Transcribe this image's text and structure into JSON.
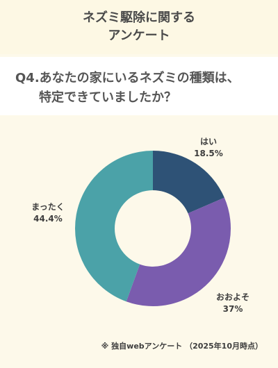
{
  "header": {
    "title_line1": "ネズミ駆除に関する",
    "title_line2": "アンケート"
  },
  "question": {
    "line1": "Q4.あなたの家にいるネズミの種類は、",
    "line2": "特定できていましたか？"
  },
  "chart_data": {
    "type": "pie",
    "donut": true,
    "title": "",
    "slices": [
      {
        "label": "はい",
        "value": 18.5,
        "value_text": "18.5%",
        "color": "#2e5276"
      },
      {
        "label": "おおよそ",
        "value": 37,
        "value_text": "37%",
        "color": "#7a5cae"
      },
      {
        "label": "まったく",
        "value": 44.4,
        "value_text": "44.4%",
        "color": "#4ba2a8"
      }
    ]
  },
  "footnote": "※ 独自webアンケート （2025年10月時点）"
}
